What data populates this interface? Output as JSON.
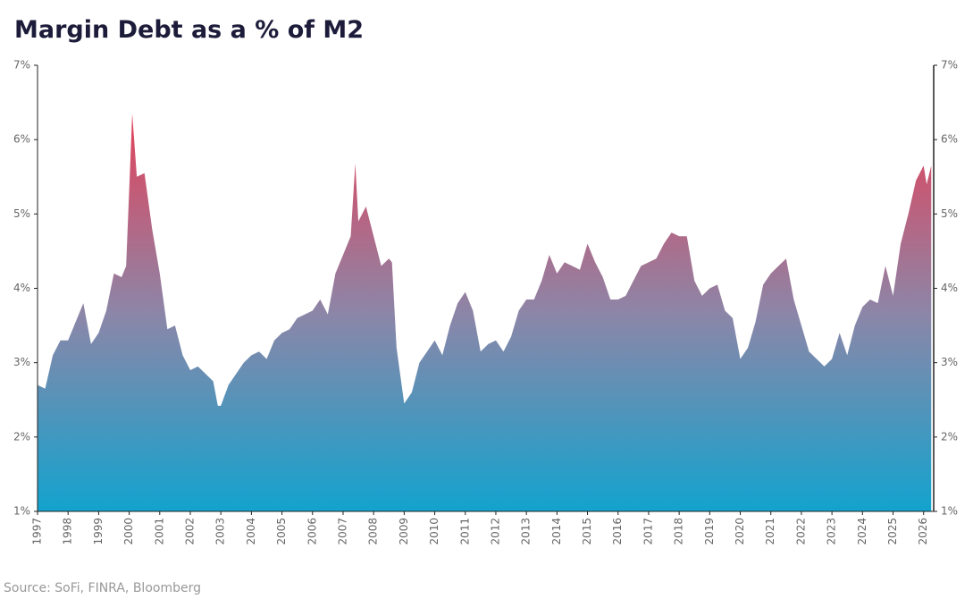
{
  "chart_data": {
    "type": "area",
    "title": "Margin Debt as a % of M2",
    "source": "Source: SoFi, FINRA, Bloomberg",
    "x": [
      1997.0,
      1997.25,
      1997.5,
      1997.75,
      1998.0,
      1998.25,
      1998.5,
      1998.75,
      1999.0,
      1999.25,
      1999.5,
      1999.75,
      1999.9,
      2000.1,
      2000.25,
      2000.5,
      2000.75,
      2001.0,
      2001.25,
      2001.5,
      2001.75,
      2002.0,
      2002.25,
      2002.5,
      2002.75,
      2002.9,
      2003.0,
      2003.25,
      2003.5,
      2003.75,
      2004.0,
      2004.25,
      2004.5,
      2004.75,
      2005.0,
      2005.25,
      2005.5,
      2005.75,
      2006.0,
      2006.25,
      2006.5,
      2006.75,
      2007.0,
      2007.25,
      2007.4,
      2007.5,
      2007.75,
      2008.0,
      2008.25,
      2008.5,
      2008.6,
      2008.75,
      2009.0,
      2009.25,
      2009.5,
      2009.75,
      2010.0,
      2010.25,
      2010.5,
      2010.75,
      2011.0,
      2011.25,
      2011.5,
      2011.75,
      2012.0,
      2012.25,
      2012.5,
      2012.75,
      2013.0,
      2013.25,
      2013.5,
      2013.75,
      2014.0,
      2014.25,
      2014.5,
      2014.75,
      2015.0,
      2015.25,
      2015.5,
      2015.75,
      2016.0,
      2016.25,
      2016.5,
      2016.75,
      2017.0,
      2017.25,
      2017.5,
      2017.75,
      2018.0,
      2018.25,
      2018.5,
      2018.75,
      2019.0,
      2019.25,
      2019.5,
      2019.75,
      2020.0,
      2020.25,
      2020.5,
      2020.75,
      2021.0,
      2021.25,
      2021.5,
      2021.75,
      2022.0,
      2022.25,
      2022.5,
      2022.75,
      2023.0,
      2023.25,
      2023.5,
      2023.75,
      2024.0,
      2024.25,
      2024.5,
      2024.75,
      2025.0,
      2025.25,
      2025.5,
      2025.75,
      2026.0,
      2026.1,
      2026.25
    ],
    "values": [
      2.7,
      2.65,
      3.1,
      3.3,
      3.3,
      3.55,
      3.8,
      3.25,
      3.4,
      3.7,
      4.2,
      4.15,
      4.3,
      6.35,
      5.5,
      5.55,
      4.8,
      4.2,
      3.45,
      3.5,
      3.1,
      2.9,
      2.95,
      2.85,
      2.75,
      2.42,
      2.42,
      2.7,
      2.85,
      3.0,
      3.1,
      3.15,
      3.05,
      3.3,
      3.4,
      3.45,
      3.6,
      3.65,
      3.7,
      3.85,
      3.65,
      4.2,
      4.45,
      4.7,
      5.68,
      4.9,
      5.1,
      4.7,
      4.3,
      4.4,
      4.35,
      3.2,
      2.45,
      2.6,
      3.0,
      3.15,
      3.3,
      3.1,
      3.5,
      3.8,
      3.95,
      3.7,
      3.15,
      3.25,
      3.3,
      3.15,
      3.35,
      3.7,
      3.85,
      3.85,
      4.1,
      4.45,
      4.2,
      4.35,
      4.3,
      4.25,
      4.6,
      4.35,
      4.15,
      3.85,
      3.85,
      3.9,
      4.1,
      4.3,
      4.35,
      4.4,
      4.6,
      4.75,
      4.7,
      4.7,
      4.1,
      3.9,
      4.0,
      4.05,
      3.7,
      3.6,
      3.05,
      3.2,
      3.55,
      4.05,
      4.2,
      4.3,
      4.4,
      3.85,
      3.5,
      3.15,
      3.05,
      2.95,
      3.05,
      3.4,
      3.1,
      3.5,
      3.75,
      3.85,
      3.8,
      4.3,
      3.9,
      4.6,
      5.0,
      5.45,
      5.65,
      5.4,
      5.65
    ],
    "colors": [
      "#e2435b",
      "#8c86a8",
      "#12a3ce"
    ],
    "xlim": [
      1997,
      2026.33
    ],
    "xticks": [
      1997,
      1998,
      1999,
      2000,
      2001,
      2002,
      2003,
      2004,
      2005,
      2006,
      2007,
      2008,
      2009,
      2010,
      2011,
      2012,
      2013,
      2014,
      2015,
      2016,
      2017,
      2018,
      2019,
      2020,
      2021,
      2022,
      2023,
      2024,
      2025,
      2026
    ],
    "ylim": [
      1,
      7
    ],
    "yticks": [
      {
        "value": 1,
        "label": "1%"
      },
      {
        "value": 2,
        "label": "2%"
      },
      {
        "value": 3,
        "label": "3%"
      },
      {
        "value": 4,
        "label": "4%"
      },
      {
        "value": 5,
        "label": "5%"
      },
      {
        "value": 6,
        "label": "6%"
      },
      {
        "value": 7,
        "label": "7%"
      }
    ]
  }
}
